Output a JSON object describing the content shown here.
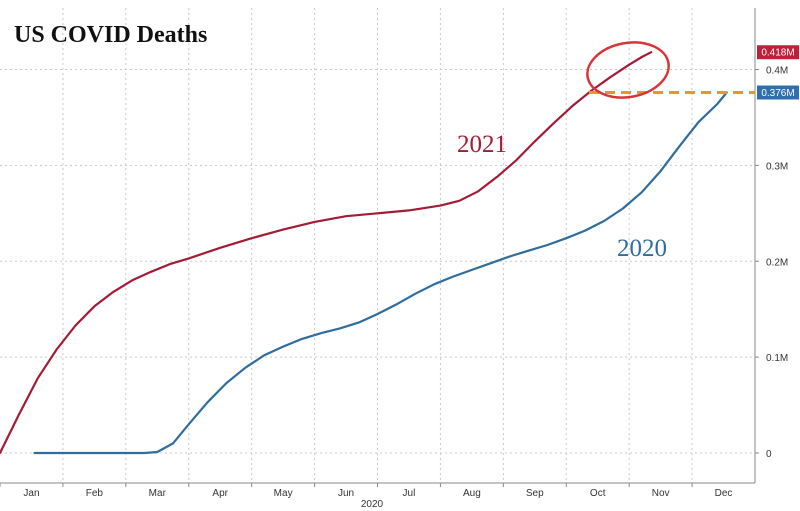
{
  "chart_data": {
    "type": "line",
    "title": "US COVID Deaths",
    "xlabel": "2020",
    "ylabel": "",
    "categories": [
      "Jan",
      "Feb",
      "Mar",
      "Apr",
      "May",
      "Jun",
      "Jul",
      "Aug",
      "Sep",
      "Oct",
      "Nov",
      "Dec"
    ],
    "y_ticks": [
      {
        "value": 0,
        "label": "0"
      },
      {
        "value": 0.1,
        "label": "0.1M"
      },
      {
        "value": 0.2,
        "label": "0.2M"
      },
      {
        "value": 0.3,
        "label": "0.3M"
      },
      {
        "value": 0.4,
        "label": "0.4M"
      }
    ],
    "ylim": [
      0,
      0.43
    ],
    "xlim": [
      0,
      12
    ],
    "grid": true,
    "y_axis_position": "right",
    "series": [
      {
        "name": "2021",
        "color": "#a31c36",
        "points": [
          [
            0.0,
            0.0
          ],
          [
            0.3,
            0.04
          ],
          [
            0.6,
            0.078
          ],
          [
            0.9,
            0.108
          ],
          [
            1.2,
            0.133
          ],
          [
            1.5,
            0.153
          ],
          [
            1.8,
            0.168
          ],
          [
            2.1,
            0.18
          ],
          [
            2.4,
            0.189
          ],
          [
            2.7,
            0.197
          ],
          [
            3.0,
            0.203
          ],
          [
            3.5,
            0.214
          ],
          [
            4.0,
            0.224
          ],
          [
            4.5,
            0.233
          ],
          [
            5.0,
            0.241
          ],
          [
            5.5,
            0.247
          ],
          [
            6.0,
            0.25
          ],
          [
            6.5,
            0.253
          ],
          [
            7.0,
            0.258
          ],
          [
            7.3,
            0.263
          ],
          [
            7.6,
            0.273
          ],
          [
            7.9,
            0.288
          ],
          [
            8.2,
            0.305
          ],
          [
            8.5,
            0.325
          ],
          [
            8.8,
            0.344
          ],
          [
            9.1,
            0.362
          ],
          [
            9.4,
            0.378
          ],
          [
            9.7,
            0.392
          ],
          [
            10.0,
            0.405
          ],
          [
            10.2,
            0.413
          ],
          [
            10.35,
            0.418
          ]
        ]
      },
      {
        "name": "2020",
        "color": "#2f6c9f",
        "points": [
          [
            0.55,
            0.0
          ],
          [
            1.0,
            0.0
          ],
          [
            1.5,
            0.0
          ],
          [
            2.0,
            0.0
          ],
          [
            2.3,
            0.0
          ],
          [
            2.5,
            0.001
          ],
          [
            2.75,
            0.01
          ],
          [
            3.0,
            0.03
          ],
          [
            3.3,
            0.053
          ],
          [
            3.6,
            0.073
          ],
          [
            3.9,
            0.089
          ],
          [
            4.2,
            0.102
          ],
          [
            4.5,
            0.111
          ],
          [
            4.8,
            0.119
          ],
          [
            5.1,
            0.125
          ],
          [
            5.4,
            0.13
          ],
          [
            5.7,
            0.136
          ],
          [
            6.0,
            0.145
          ],
          [
            6.3,
            0.155
          ],
          [
            6.6,
            0.166
          ],
          [
            6.9,
            0.176
          ],
          [
            7.2,
            0.184
          ],
          [
            7.5,
            0.191
          ],
          [
            7.8,
            0.198
          ],
          [
            8.1,
            0.205
          ],
          [
            8.4,
            0.211
          ],
          [
            8.7,
            0.217
          ],
          [
            9.0,
            0.224
          ],
          [
            9.3,
            0.232
          ],
          [
            9.6,
            0.242
          ],
          [
            9.9,
            0.255
          ],
          [
            10.2,
            0.272
          ],
          [
            10.5,
            0.294
          ],
          [
            10.8,
            0.32
          ],
          [
            11.1,
            0.345
          ],
          [
            11.4,
            0.364
          ],
          [
            11.55,
            0.376
          ]
        ]
      }
    ],
    "end_labels": [
      {
        "series": "2021",
        "value": 0.418,
        "label": "0.418M",
        "color": "#c01f3a"
      },
      {
        "series": "2020",
        "value": 0.376,
        "label": "0.376M",
        "color": "#2f6fae"
      }
    ],
    "annotations": {
      "highlight_circle": {
        "series": "2021",
        "x_range": [
          9.4,
          10.5
        ],
        "color": "#d9343a"
      },
      "dashed_reference": {
        "value": 0.376,
        "color": "#e8962a"
      }
    }
  }
}
